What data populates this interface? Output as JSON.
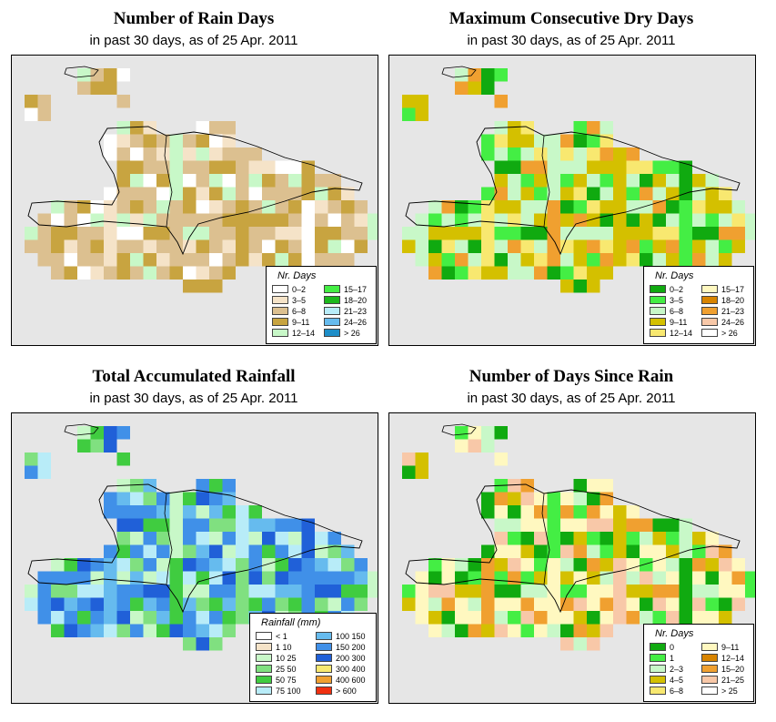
{
  "panels": [
    {
      "title": "Number of Rain Days",
      "subtitle": "in past 30 days, as of  25 Apr. 2011",
      "legend": {
        "title": "Nr. Days",
        "items": [
          {
            "label": "0–2",
            "color": "#ffffff"
          },
          {
            "label": "15–17",
            "color": "#44ee44"
          },
          {
            "label": "3–5",
            "color": "#f5e3c8"
          },
          {
            "label": "18–20",
            "color": "#1cb81c"
          },
          {
            "label": "6–8",
            "color": "#dcc090"
          },
          {
            "label": "21–23",
            "color": "#b8ecf8"
          },
          {
            "label": "9–11",
            "color": "#c8a440"
          },
          {
            "label": "24–26",
            "color": "#66bbee"
          },
          {
            "label": "12–14",
            "color": "#c8f8c8"
          },
          {
            "label": "> 26",
            "color": "#1e8ec8"
          }
        ]
      }
    },
    {
      "title": "Maximum Consecutive Dry Days",
      "subtitle": "in past 30 days, as of  25 Apr. 2011",
      "legend": {
        "title": "Nr. Days",
        "items": [
          {
            "label": "0–2",
            "color": "#10aa10"
          },
          {
            "label": "15–17",
            "color": "#fff8c0"
          },
          {
            "label": "3–5",
            "color": "#44ee44"
          },
          {
            "label": "18–20",
            "color": "#d88400"
          },
          {
            "label": "6–8",
            "color": "#c8f8c8"
          },
          {
            "label": "21–23",
            "color": "#f0a030"
          },
          {
            "label": "9–11",
            "color": "#d4c000"
          },
          {
            "label": "24–26",
            "color": "#f8c8a8"
          },
          {
            "label": "12–14",
            "color": "#f8e870"
          },
          {
            "label": "> 26",
            "color": "#ffffff"
          }
        ]
      }
    },
    {
      "title": "Total Accumulated Rainfall",
      "subtitle": "in past 30 days, as of  25 Apr. 2011",
      "legend": {
        "title": "Rainfall (mm)",
        "items": [
          {
            "label": "< 1",
            "color": "#ffffff"
          },
          {
            "label": "100   150",
            "color": "#66bbee"
          },
          {
            "label": "1    10",
            "color": "#f5e3c8"
          },
          {
            "label": "150   200",
            "color": "#4090e8"
          },
          {
            "label": "10    25",
            "color": "#c8f8c8"
          },
          {
            "label": "200   300",
            "color": "#2060d8"
          },
          {
            "label": "25    50",
            "color": "#80e080"
          },
          {
            "label": "300   400",
            "color": "#f8e870"
          },
          {
            "label": "50    75",
            "color": "#40cc40"
          },
          {
            "label": "400   600",
            "color": "#f0a030"
          },
          {
            "label": "75   100",
            "color": "#b8ecf8"
          },
          {
            "label": "> 600",
            "color": "#f03010"
          }
        ]
      }
    },
    {
      "title": "Number of Days Since Rain",
      "subtitle": "in past 30 days, as of  25 Apr. 2011",
      "legend": {
        "title": "Nr. Days",
        "items": [
          {
            "label": "0",
            "color": "#10aa10"
          },
          {
            "label": "9–11",
            "color": "#fff8c0"
          },
          {
            "label": "1",
            "color": "#44ee44"
          },
          {
            "label": "12–14",
            "color": "#d88400"
          },
          {
            "label": "2–3",
            "color": "#c8f8c8"
          },
          {
            "label": "15–20",
            "color": "#f0a030"
          },
          {
            "label": "4–5",
            "color": "#d4c000"
          },
          {
            "label": "21–25",
            "color": "#f8c8a8"
          },
          {
            "label": "6–8",
            "color": "#f8e870"
          },
          {
            "label": "> 25",
            "color": "#ffffff"
          }
        ]
      }
    }
  ]
}
